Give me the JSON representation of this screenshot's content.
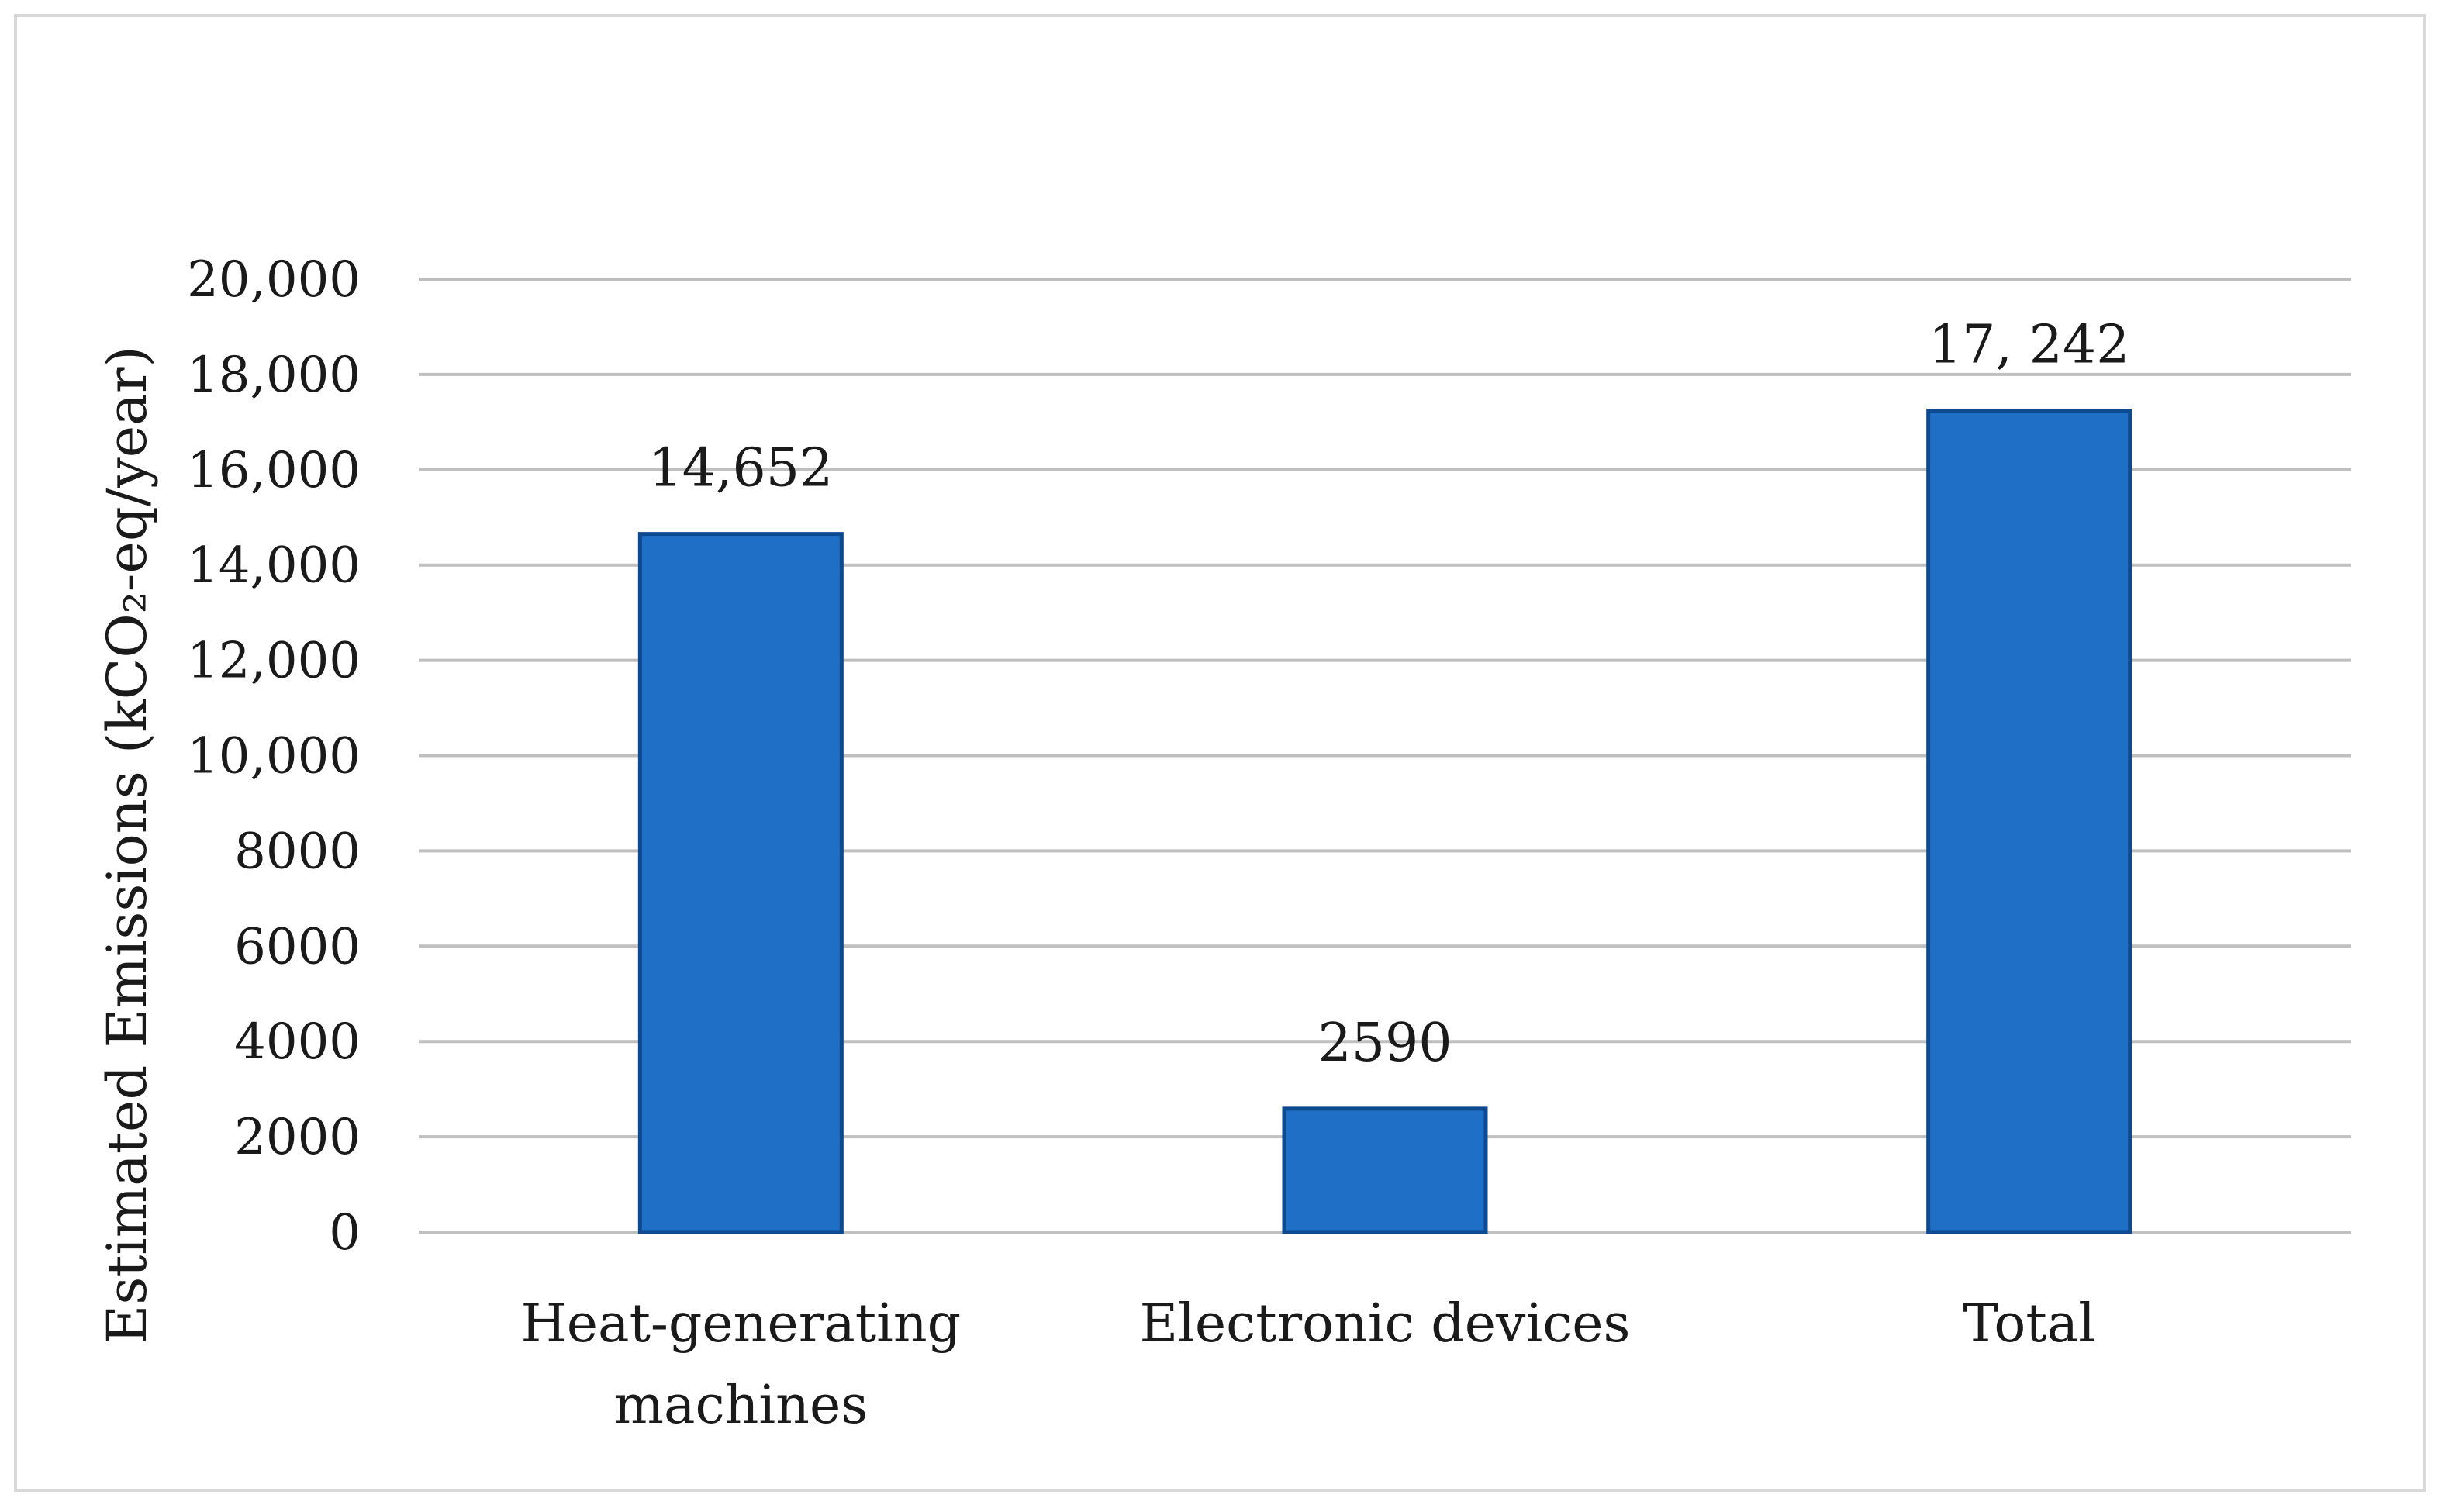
{
  "chart_data": {
    "type": "bar",
    "title": "",
    "xlabel": "",
    "ylabel": "Estimated Emissions (kCO₂-eq/year)",
    "categories": [
      [
        "Heat-generating",
        "machines"
      ],
      [
        "Electronic devices"
      ],
      [
        "Total"
      ]
    ],
    "values": [
      14652,
      2590,
      17242
    ],
    "data_labels": [
      "14,652",
      "2590",
      "17, 242"
    ],
    "ylim": [
      0,
      20000
    ],
    "yticks": [
      {
        "value": 0,
        "label": "0"
      },
      {
        "value": 2000,
        "label": "2000"
      },
      {
        "value": 4000,
        "label": "4000"
      },
      {
        "value": 6000,
        "label": "6000"
      },
      {
        "value": 8000,
        "label": "8000"
      },
      {
        "value": 10000,
        "label": "10,000"
      },
      {
        "value": 12000,
        "label": "12,000"
      },
      {
        "value": 14000,
        "label": "14,000"
      },
      {
        "value": 16000,
        "label": "16,000"
      },
      {
        "value": 18000,
        "label": "18,000"
      },
      {
        "value": 20000,
        "label": "20,000"
      }
    ],
    "grid": true,
    "legend": "none",
    "bar_color": "#1f6fc6",
    "bar_edge_color": "#0e4a8f",
    "grid_color": "#bfbfbf"
  }
}
